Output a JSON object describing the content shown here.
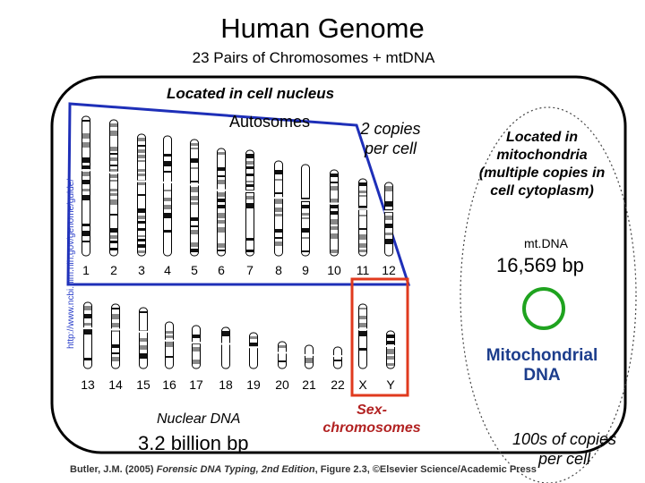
{
  "title": "Human Genome",
  "subtitle": "23 Pairs of Chromosomes + mtDNA",
  "nucleus_label": "Located in cell nucleus",
  "autosomes_label": "Autosomes",
  "copies_label": "2 copies per cell",
  "top_numbers": [
    "1",
    "2",
    "3",
    "4",
    "5",
    "6",
    "7",
    "8",
    "9",
    "10",
    "11",
    "12"
  ],
  "bottom_numbers": [
    "13",
    "14",
    "15",
    "16",
    "17",
    "18",
    "19",
    "20",
    "21",
    "22",
    "X",
    "Y"
  ],
  "nuclear_dna_label": "Nuclear DNA",
  "nuclear_size": "3.2 billion bp",
  "sex_label": "Sex-chromosomes",
  "mito_location": "Located in mitochondria (multiple copies in cell cytoplasm)",
  "mtdna_label": "mt.DNA",
  "mtdna_size": "16,569 bp",
  "mito_dna_label": "Mitochondrial DNA",
  "mito_copies": "100s of copies per cell",
  "citation_author": "Butler, J.M. (2005) ",
  "citation_title": "Forensic DNA Typing, 2nd Edition",
  "citation_rest": ", Figure 2.3, ©Elsevier Science/Academic Press",
  "source_url": "http://www.ncbi.nlm.nih.gov/genome/guide/",
  "colors": {
    "blue": "#1e2fb8",
    "red": "#e03a1e",
    "green": "#1fa31f",
    "navy": "#1c3d8c"
  }
}
